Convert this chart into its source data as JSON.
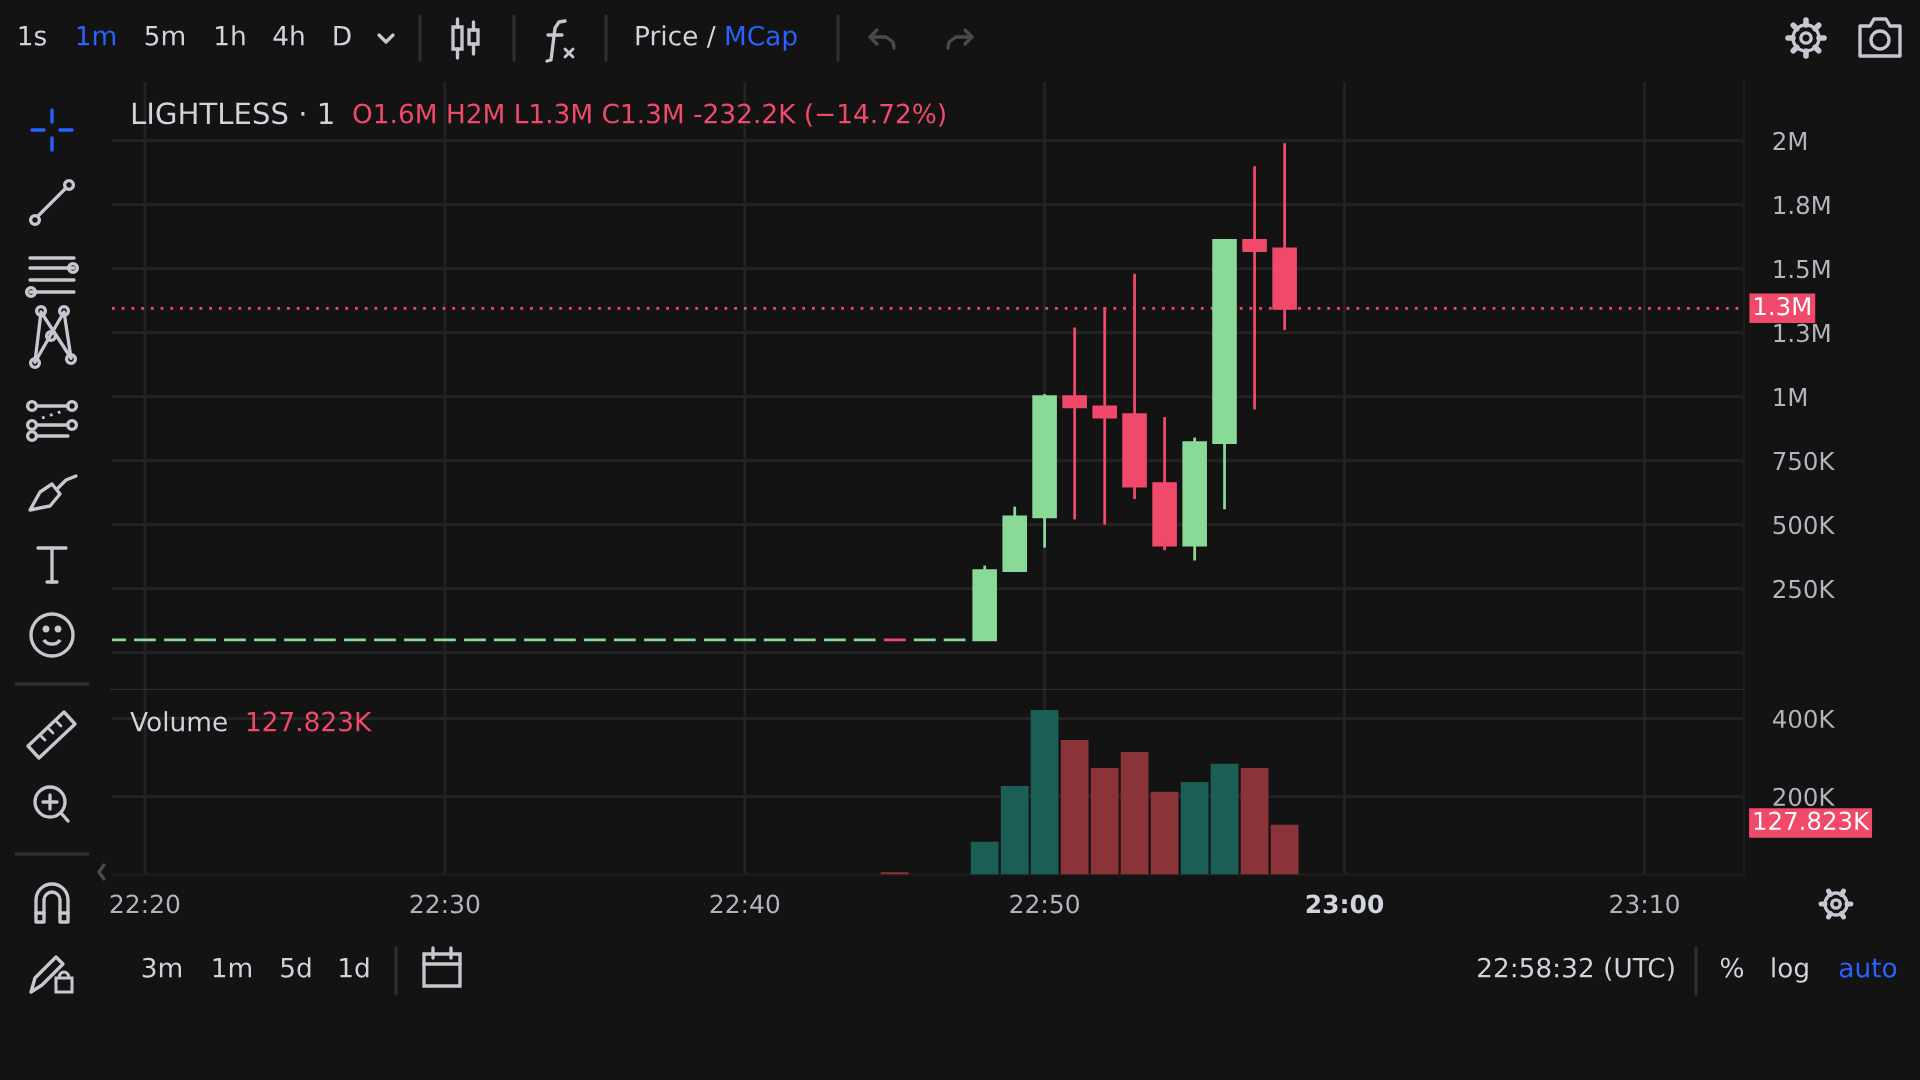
{
  "chart_data": [
    {
      "type": "candlestick",
      "title": "LIGHTLESS · 1",
      "subtitle": "O1.6M H2M L1.3M C1.3M -232.2K (−14.72%)",
      "x": [
        22.3167,
        22.3333,
        22.35,
        22.3667,
        22.3833,
        22.4,
        22.4167,
        22.4333,
        22.45,
        22.4667,
        22.4833,
        22.5,
        22.5167,
        22.5333,
        22.55,
        22.5667,
        22.5833,
        22.6,
        22.6167,
        22.6333,
        22.65,
        22.6667,
        22.6833,
        22.7,
        22.7167,
        22.7333,
        22.75,
        22.7667,
        22.7833,
        22.8,
        22.8167,
        22.8333,
        22.85,
        22.8667,
        22.8833,
        22.9,
        22.9167,
        22.9333,
        22.95,
        22.9667
      ],
      "ohlc": [
        [
          50000,
          50000,
          50000,
          50000
        ],
        [
          50000,
          50000,
          50000,
          50000
        ],
        [
          50000,
          50000,
          50000,
          50000
        ],
        [
          50000,
          50000,
          50000,
          50000
        ],
        [
          50000,
          50000,
          50000,
          50000
        ],
        [
          50000,
          50000,
          50000,
          50000
        ],
        [
          50000,
          50000,
          50000,
          50000
        ],
        [
          50000,
          50000,
          50000,
          50000
        ],
        [
          50000,
          50000,
          50000,
          50000
        ],
        [
          50000,
          50000,
          50000,
          50000
        ],
        [
          50000,
          50000,
          50000,
          50000
        ],
        [
          50000,
          50000,
          50000,
          50000
        ],
        [
          50000,
          50000,
          50000,
          50000
        ],
        [
          50000,
          50000,
          50000,
          50000
        ],
        [
          50000,
          50000,
          50000,
          50000
        ],
        [
          50000,
          50000,
          50000,
          50000
        ],
        [
          50000,
          50000,
          50000,
          50000
        ],
        [
          50000,
          50000,
          50000,
          50000
        ],
        [
          50000,
          50000,
          50000,
          50000
        ],
        [
          50000,
          50000,
          50000,
          50000
        ],
        [
          50000,
          50000,
          50000,
          50000
        ],
        [
          50000,
          50000,
          50000,
          50000
        ],
        [
          50000,
          50000,
          50000,
          50000
        ],
        [
          50000,
          50000,
          50000,
          50000
        ],
        [
          50000,
          50000,
          50000,
          50000
        ],
        [
          50000,
          50000,
          50000,
          50000
        ],
        [
          50000,
          50000,
          50000,
          50000
        ],
        [
          50000,
          50000,
          50000,
          50000
        ],
        [
          50000,
          50000,
          50000,
          50000
        ],
        [
          50000,
          340000,
          50000,
          320000
        ],
        [
          320000,
          570000,
          320000,
          530000
        ],
        [
          530000,
          1010000,
          410000,
          1000000
        ],
        [
          1000000,
          1270000,
          520000,
          960000
        ],
        [
          960000,
          1350000,
          500000,
          920000
        ],
        [
          930000,
          1480000,
          600000,
          650000
        ],
        [
          660000,
          920000,
          400000,
          420000
        ],
        [
          420000,
          840000,
          360000,
          820000
        ],
        [
          820000,
          1610000,
          560000,
          1610000
        ],
        [
          1610000,
          1900000,
          950000,
          1570000
        ],
        [
          1577000,
          1990000,
          1260000,
          1345000
        ]
      ],
      "colors": [
        "#89d997",
        "#89d997",
        "#89d997",
        "#89d997",
        "#89d997",
        "#89d997",
        "#89d997",
        "#89d997",
        "#89d997",
        "#89d997",
        "#89d997",
        "#89d997",
        "#89d997",
        "#89d997",
        "#89d997",
        "#89d997",
        "#89d997",
        "#89d997",
        "#89d997",
        "#89d997",
        "#89d997",
        "#89d997",
        "#89d997",
        "#89d997",
        "#89d997",
        "#89d997",
        "#f0496a",
        "#89d997",
        "#89d997",
        "#89d997",
        "#89d997",
        "#89d997",
        "#f0496a",
        "#f0496a",
        "#f0496a",
        "#f0496a",
        "#89d997",
        "#89d997",
        "#f0496a",
        "#f0496a"
      ],
      "xlim": [
        22.315,
        23.222
      ],
      "xticks": [
        {
          "value": 22.3333,
          "label": null
        },
        {
          "value": 22.5,
          "label": null
        },
        {
          "value": 22.6667,
          "label": null
        },
        {
          "value": 22.8333,
          "label": null
        },
        {
          "value": 23,
          "label": null
        },
        {
          "value": 23.1667,
          "label": null
        }
      ],
      "ylim": [
        -146000,
        2229000
      ],
      "yticks": [
        {
          "value": 0,
          "label": null
        },
        {
          "value": 250000,
          "label": "250K"
        },
        {
          "value": 500000,
          "label": "500K"
        },
        {
          "value": 750000,
          "label": "750K"
        },
        {
          "value": 1000000,
          "label": "1M"
        },
        {
          "value": 1250000,
          "label": "1.3M"
        },
        {
          "value": 1500000,
          "label": "1.5M"
        },
        {
          "value": 1750000,
          "label": "1.8M"
        },
        {
          "value": 2000000,
          "label": "2M"
        }
      ],
      "grid": true,
      "tick_labels": "y",
      "ref_lines": [
        {
          "axis": "y",
          "value": 1345000,
          "label": "1.3M",
          "color": "#f0496a",
          "line_style": "dotted"
        }
      ],
      "annotations": [
        "1s",
        "1m",
        "5m",
        "1h",
        "4h",
        "D",
        "Price /",
        "MCap"
      ]
    },
    {
      "type": "bar",
      "title": "Volume",
      "subtitle": "127.823K",
      "x": [
        22.75,
        22.8,
        22.8167,
        22.8333,
        22.85,
        22.8667,
        22.8833,
        22.9,
        22.9167,
        22.9333,
        22.95,
        22.9667
      ],
      "values": [
        6000,
        84000,
        227000,
        422000,
        345000,
        273000,
        314000,
        212000,
        237000,
        284000,
        273000,
        127823
      ],
      "colors": [
        "#8a3339",
        "#1b5e55",
        "#1b5e55",
        "#1b5e55",
        "#8a3339",
        "#8a3339",
        "#8a3339",
        "#8a3339",
        "#1b5e55",
        "#1b5e55",
        "#8a3339",
        "#8a3339"
      ],
      "xlim": [
        22.315,
        23.222
      ],
      "xticks": [
        {
          "value": 22.3333,
          "label": "22:20"
        },
        {
          "value": 22.5,
          "label": "22:30"
        },
        {
          "value": 22.6667,
          "label": "22:40"
        },
        {
          "value": 22.8333,
          "label": "22:50"
        },
        {
          "value": 23,
          "label": "23:00"
        },
        {
          "value": 23.1667,
          "label": "23:10"
        }
      ],
      "ylim": [
        0,
        473000
      ],
      "yticks": [
        {
          "value": 200000,
          "label": "200K"
        },
        {
          "value": 400000,
          "label": "400K"
        }
      ],
      "grid": true,
      "annotations": [
        "3m",
        "1m",
        "5d",
        "1d",
        "22:58:32 (UTC)",
        "%",
        "log",
        "auto",
        "127.823K"
      ]
    }
  ]
}
